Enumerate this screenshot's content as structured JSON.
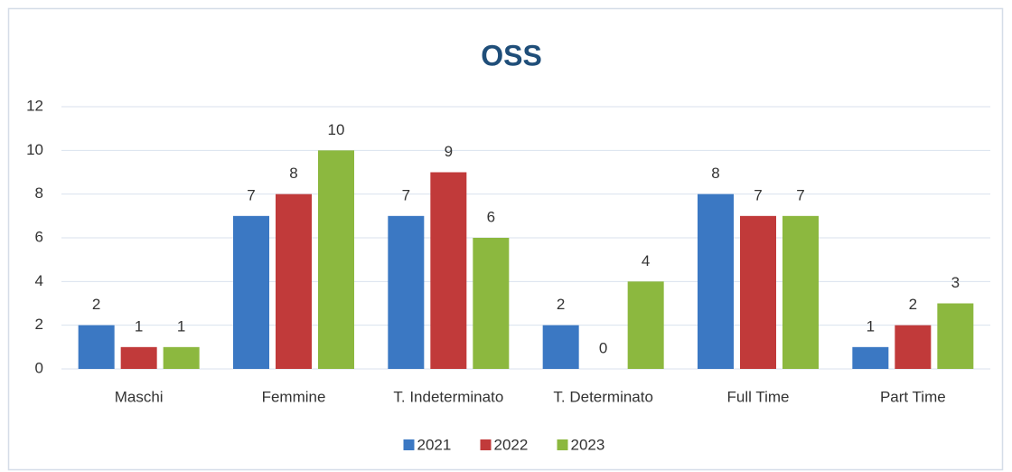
{
  "chart_data": {
    "type": "bar",
    "title": "OSS",
    "categories": [
      "Maschi",
      "Femmine",
      "T. Indeterminato",
      "T. Determinato",
      "Full Time",
      "Part Time"
    ],
    "series": [
      {
        "name": "2021",
        "color": "#3b78c3",
        "values": [
          2,
          7,
          7,
          2,
          8,
          1
        ]
      },
      {
        "name": "2022",
        "color": "#c13a3a",
        "values": [
          1,
          8,
          9,
          0,
          7,
          2
        ]
      },
      {
        "name": "2023",
        "color": "#8cb83f",
        "values": [
          1,
          10,
          6,
          4,
          7,
          3
        ]
      }
    ],
    "ylim": [
      0,
      12
    ],
    "yticks": [
      0,
      2,
      4,
      6,
      8,
      10,
      12
    ],
    "grid": true,
    "legend": "bottom"
  }
}
